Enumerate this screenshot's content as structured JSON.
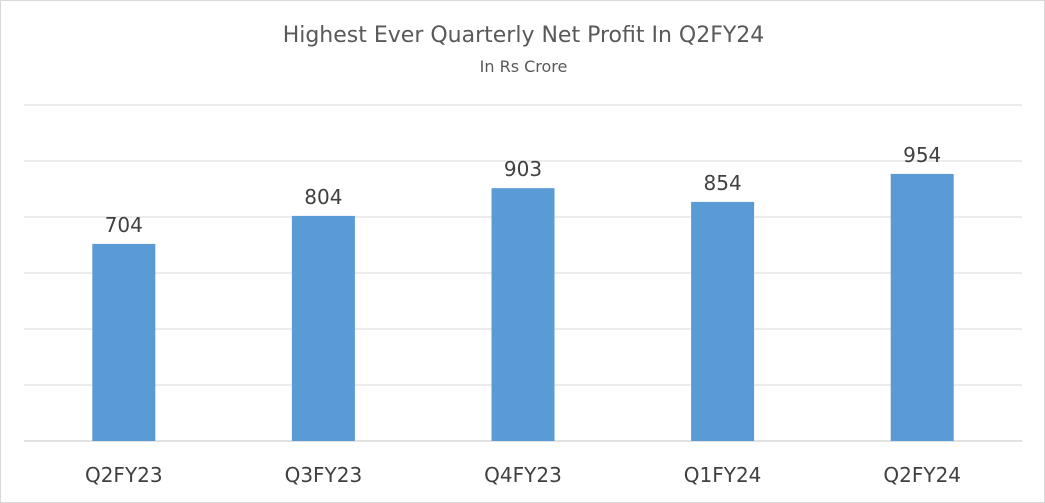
{
  "chart_data": {
    "type": "bar",
    "title": "Highest Ever Quarterly Net Profit In Q2FY24",
    "subtitle": "In Rs Crore",
    "categories": [
      "Q2FY23",
      "Q3FY23",
      "Q4FY23",
      "Q1FY24",
      "Q2FY24"
    ],
    "values": [
      704,
      804,
      903,
      854,
      954
    ],
    "data_labels": [
      "704",
      "804",
      "903",
      "854",
      "954"
    ],
    "ylim": [
      0,
      1200
    ],
    "grid": true,
    "legend": "none",
    "colors": {
      "bar": "#5b9bd5",
      "grid": "#d9d9d9",
      "text": "#404040"
    }
  }
}
